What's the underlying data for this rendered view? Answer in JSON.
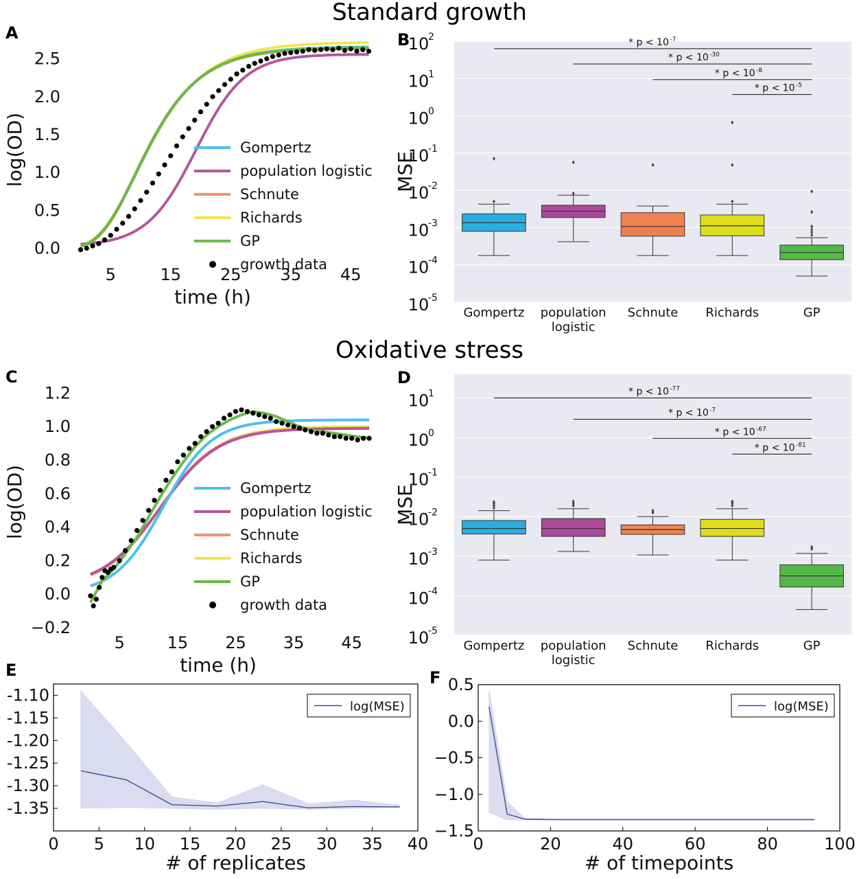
{
  "figure": {
    "titles": {
      "top": "Standard growth",
      "middle": "Oxidative stress"
    },
    "panel_letters": [
      "A",
      "B",
      "C",
      "D",
      "E",
      "F"
    ]
  },
  "colors": {
    "Gompertz": "#4cc0ec",
    "population logistic": "#b5579e",
    "Schnute": "#f0936d",
    "Richards": "#f6e352",
    "GP": "#6abb46",
    "data": "#000000",
    "box_Gompertz": "#2aaee0",
    "box_population_logistic": "#aa4a99",
    "box_Schnute": "#ee8250",
    "box_Richards": "#dede1c",
    "box_GP": "#54b848",
    "boxplot_bg": "#e9e9f1",
    "mse_line": "#3e4e9a",
    "mse_band": "#dcdcf0"
  },
  "chart_data": [
    {
      "panel": "A",
      "type": "line",
      "title": "",
      "xlabel": "time (h)",
      "ylabel": "log(OD)",
      "xlim": [
        -2,
        50
      ],
      "ylim": [
        -0.15,
        2.75
      ],
      "xticks": [
        5,
        15,
        25,
        35,
        45
      ],
      "yticks": [
        0.0,
        0.5,
        1.0,
        1.5,
        2.0,
        2.5
      ],
      "ytick_labels": [
        "0.0",
        "0.5",
        "1.0",
        "1.5",
        "2.0",
        "2.5"
      ],
      "legend": [
        "Gompertz",
        "population logistic",
        "Schnute",
        "Richards",
        "GP",
        "growth data"
      ],
      "model_params": {
        "Gompertz": {
          "kind": "gompertz",
          "A": 2.66,
          "mu": 0.162,
          "lambda": 3.1,
          "y0": 0.0
        },
        "population logistic": {
          "kind": "logistic",
          "A": 2.56,
          "k": 0.245,
          "t0": 19.2,
          "y0": 0.03
        },
        "Schnute": {
          "kind": "gompertz",
          "A": 2.64,
          "mu": 0.164,
          "lambda": 3.2,
          "y0": 0.0
        },
        "Richards": {
          "kind": "gompertz",
          "A": 2.72,
          "mu": 0.158,
          "lambda": 3.0,
          "y0": 0.0
        },
        "GP": {
          "kind": "gompertz",
          "A": 2.65,
          "mu": 0.163,
          "lambda": 3.1,
          "y0": 0.0
        }
      },
      "growth_data": {
        "x": [
          0,
          1,
          2,
          3,
          4,
          5,
          6,
          7,
          8,
          9,
          10,
          11,
          12,
          13,
          14,
          15,
          16,
          17,
          18,
          19,
          20,
          21,
          22,
          23,
          24,
          25,
          26,
          27,
          28,
          29,
          30,
          31,
          32,
          33,
          34,
          35,
          36,
          37,
          38,
          39,
          40,
          41,
          42,
          43,
          44,
          45,
          46,
          47,
          48
        ],
        "y": [
          -0.02,
          0.0,
          0.03,
          0.06,
          0.11,
          0.17,
          0.25,
          0.33,
          0.42,
          0.52,
          0.63,
          0.74,
          0.86,
          0.98,
          1.1,
          1.22,
          1.35,
          1.47,
          1.58,
          1.69,
          1.8,
          1.9,
          2.0,
          2.08,
          2.16,
          2.23,
          2.3,
          2.35,
          2.4,
          2.44,
          2.47,
          2.5,
          2.53,
          2.55,
          2.57,
          2.58,
          2.59,
          2.6,
          2.62,
          2.61,
          2.62,
          2.63,
          2.62,
          2.64,
          2.61,
          2.63,
          2.6,
          2.62,
          2.6
        ]
      }
    },
    {
      "panel": "B",
      "type": "box",
      "ylabel": "MSE",
      "scale": "log10",
      "ylim_log10": [
        -5,
        2
      ],
      "ytick_exponents": [
        "-5",
        "-4",
        "-3",
        "-2",
        "-1",
        "0",
        "1",
        "2"
      ],
      "ytick_base": "10",
      "categories": [
        "Gompertz",
        "population logistic",
        "Schnute",
        "Richards",
        "GP"
      ],
      "category_labels": [
        [
          "Gompertz"
        ],
        [
          "population",
          "logistic"
        ],
        [
          "Schnute"
        ],
        [
          "Richards"
        ],
        [
          "GP"
        ]
      ],
      "boxes_log10": [
        {
          "whislo": -3.75,
          "q1": -3.1,
          "med": -2.87,
          "q3": -2.63,
          "whishi": -2.37,
          "fliers": [
            -2.3,
            -1.15
          ]
        },
        {
          "whislo": -3.38,
          "q1": -2.73,
          "med": -2.56,
          "q3": -2.4,
          "whishi": -2.13,
          "fliers": [
            -2.08,
            -1.25
          ]
        },
        {
          "whislo": -3.75,
          "q1": -3.23,
          "med": -2.97,
          "q3": -2.6,
          "whishi": -2.42,
          "fliers": [
            -1.32
          ]
        },
        {
          "whislo": -3.75,
          "q1": -3.22,
          "med": -2.95,
          "q3": -2.66,
          "whishi": -2.37,
          "fliers": [
            -2.3,
            -1.32,
            -0.18
          ]
        },
        {
          "whislo": -4.3,
          "q1": -3.86,
          "med": -3.67,
          "q3": -3.47,
          "whishi": -3.27,
          "fliers": [
            -3.2,
            -3.12,
            -3.05,
            -2.97,
            -2.58,
            -2.03
          ]
        }
      ],
      "significance": [
        {
          "from": 0,
          "to": 4,
          "y_log10": 1.8,
          "label": "* p < 10",
          "exponent": "-7"
        },
        {
          "from": 1,
          "to": 4,
          "y_log10": 1.39,
          "label": "* p < 10",
          "exponent": "-30"
        },
        {
          "from": 2,
          "to": 4,
          "y_log10": 0.97,
          "label": "* p < 10",
          "exponent": "-8"
        },
        {
          "from": 3,
          "to": 4,
          "y_log10": 0.57,
          "label": "* p < 10",
          "exponent": "-5"
        }
      ]
    },
    {
      "panel": "C",
      "type": "line",
      "title": "",
      "xlabel": "time (h)",
      "ylabel": "log(OD)",
      "xlim": [
        -2,
        50
      ],
      "ylim": [
        -0.2,
        1.3
      ],
      "xticks": [
        5,
        15,
        25,
        35,
        45
      ],
      "yticks": [
        -0.2,
        0.0,
        0.2,
        0.4,
        0.6,
        0.8,
        1.0,
        1.2
      ],
      "ytick_labels": [
        "−0.2",
        "0.0",
        "0.2",
        "0.4",
        "0.6",
        "0.8",
        "1.0",
        "1.2"
      ],
      "legend": [
        "Gompertz",
        "population logistic",
        "Schnute",
        "Richards",
        "GP",
        "growth data"
      ],
      "model_params": {
        "Gompertz": {
          "kind": "logistic",
          "A": 1.04,
          "k": 0.24,
          "t0": 12.5,
          "y0": 0.0
        },
        "population logistic": {
          "kind": "logistic",
          "A": 0.99,
          "k": 0.2,
          "t0": 12.0,
          "y0": 0.04
        },
        "Schnute": {
          "kind": "logistic",
          "A": 0.99,
          "k": 0.205,
          "t0": 12.0,
          "y0": 0.04
        },
        "Richards": {
          "kind": "logistic",
          "A": 1.0,
          "k": 0.2,
          "t0": 12.2,
          "y0": 0.04
        }
      },
      "gp_curve": {
        "x": [
          0,
          2,
          4,
          6,
          8,
          10,
          12,
          14,
          16,
          18,
          20,
          22,
          24,
          26,
          28,
          30,
          32,
          34,
          36,
          38,
          40,
          42,
          44,
          46,
          48
        ],
        "y": [
          -0.05,
          0.08,
          0.15,
          0.24,
          0.34,
          0.46,
          0.58,
          0.69,
          0.79,
          0.88,
          0.95,
          1.0,
          1.04,
          1.07,
          1.09,
          1.08,
          1.06,
          1.03,
          1.0,
          0.98,
          0.97,
          0.96,
          0.95,
          0.94,
          0.93
        ]
      },
      "growth_data": {
        "x": [
          0,
          0.5,
          1,
          1.5,
          2,
          2.5,
          3,
          3.5,
          4,
          5,
          6,
          7,
          8,
          9,
          10,
          11,
          12,
          13,
          14,
          15,
          16,
          17,
          18,
          19,
          20,
          21,
          22,
          23,
          24,
          25,
          26,
          27,
          28,
          29,
          30,
          31,
          32,
          33,
          34,
          35,
          36,
          37,
          38,
          39,
          40,
          41,
          42,
          43,
          44,
          45,
          46,
          47,
          48
        ],
        "y": [
          -0.01,
          -0.07,
          -0.03,
          0.04,
          0.1,
          0.14,
          0.13,
          0.15,
          0.16,
          0.2,
          0.26,
          0.32,
          0.38,
          0.44,
          0.5,
          0.56,
          0.62,
          0.68,
          0.73,
          0.79,
          0.83,
          0.87,
          0.9,
          0.94,
          0.97,
          1.0,
          1.02,
          1.05,
          1.07,
          1.09,
          1.1,
          1.09,
          1.08,
          1.07,
          1.06,
          1.05,
          1.03,
          1.02,
          1.01,
          1.0,
          0.99,
          0.98,
          0.97,
          0.96,
          0.96,
          0.95,
          0.94,
          0.94,
          0.93,
          0.93,
          0.92,
          0.93,
          0.93
        ]
      }
    },
    {
      "panel": "D",
      "type": "box",
      "ylabel": "MSE",
      "scale": "log10",
      "ylim_log10": [
        -5,
        1.6
      ],
      "ytick_exponents": [
        "-5",
        "-4",
        "-3",
        "-2",
        "-1",
        "0",
        "1"
      ],
      "ytick_base": "10",
      "categories": [
        "Gompertz",
        "population logistic",
        "Schnute",
        "Richards",
        "GP"
      ],
      "category_labels": [
        [
          "Gompertz"
        ],
        [
          "population",
          "logistic"
        ],
        [
          "Schnute"
        ],
        [
          "Richards"
        ],
        [
          "GP"
        ]
      ],
      "boxes_log10": [
        {
          "whislo": -3.1,
          "q1": -2.44,
          "med": -2.3,
          "q3": -2.1,
          "whishi": -1.85,
          "fliers": [
            -1.78,
            -1.72,
            -1.67,
            -1.63
          ]
        },
        {
          "whislo": -2.88,
          "q1": -2.5,
          "med": -2.3,
          "q3": -2.05,
          "whishi": -1.8,
          "fliers": [
            -1.72,
            -1.67,
            -1.62
          ]
        },
        {
          "whislo": -2.97,
          "q1": -2.45,
          "med": -2.33,
          "q3": -2.21,
          "whishi": -2.0,
          "fliers": [
            -1.9,
            -1.85
          ]
        },
        {
          "whislo": -3.1,
          "q1": -2.5,
          "med": -2.3,
          "q3": -2.07,
          "whishi": -1.8,
          "fliers": [
            -1.72,
            -1.66,
            -1.62
          ]
        },
        {
          "whislo": -4.35,
          "q1": -3.78,
          "med": -3.5,
          "q3": -3.22,
          "whishi": -2.93,
          "fliers": [
            -2.82,
            -2.77
          ]
        }
      ],
      "significance": [
        {
          "from": 0,
          "to": 4,
          "y_log10": 1.0,
          "label": "* p < 10",
          "exponent": "-77"
        },
        {
          "from": 1,
          "to": 4,
          "y_log10": 0.46,
          "label": "* p < 10",
          "exponent": "-7"
        },
        {
          "from": 2,
          "to": 4,
          "y_log10": -0.02,
          "label": "* p < 10",
          "exponent": "-67"
        },
        {
          "from": 3,
          "to": 4,
          "y_log10": -0.42,
          "label": "* p < 10",
          "exponent": "-81"
        }
      ]
    },
    {
      "panel": "E",
      "type": "line",
      "xlabel": "# of replicates",
      "ylabel": "",
      "xlim": [
        0,
        40
      ],
      "ylim": [
        -1.4,
        -1.075
      ],
      "xticks": [
        0,
        5,
        10,
        15,
        20,
        25,
        30,
        35,
        40
      ],
      "yticks": [
        -1.35,
        -1.3,
        -1.25,
        -1.2,
        -1.15,
        -1.1
      ],
      "ytick_labels": [
        "-1.35",
        "-1.30",
        "-1.25",
        "-1.20",
        "-1.15",
        "-1.10"
      ],
      "legend": [
        "log(MSE)"
      ],
      "x": [
        3,
        8,
        13,
        18,
        23,
        28,
        33,
        38
      ],
      "y": [
        -1.267,
        -1.287,
        -1.342,
        -1.345,
        -1.335,
        -1.349,
        -1.346,
        -1.347
      ],
      "band_upper": [
        -1.09,
        -1.205,
        -1.325,
        -1.338,
        -1.298,
        -1.34,
        -1.332,
        -1.343
      ],
      "band_lower": [
        -1.35,
        -1.348,
        -1.35,
        -1.352,
        -1.35,
        -1.352,
        -1.35,
        -1.348
      ]
    },
    {
      "panel": "F",
      "type": "line",
      "xlabel": "# of timepoints",
      "ylabel": "",
      "xlim": [
        0,
        100
      ],
      "ylim": [
        -1.5,
        0.5
      ],
      "xticks": [
        0,
        20,
        40,
        60,
        80,
        100
      ],
      "yticks": [
        -1.5,
        -1.0,
        -0.5,
        0.0,
        0.5
      ],
      "ytick_labels": [
        "−1.5",
        "−1.0",
        "−0.5",
        "0.0",
        "0.5"
      ],
      "legend": [
        "log(MSE)"
      ],
      "x": [
        3,
        8,
        13,
        23,
        33,
        43,
        53,
        63,
        73,
        83,
        93
      ],
      "y": [
        0.2,
        -1.27,
        -1.34,
        -1.345,
        -1.345,
        -1.345,
        -1.345,
        -1.345,
        -1.345,
        -1.345,
        -1.345
      ],
      "band_upper": [
        0.43,
        -1.1,
        -1.33,
        -1.34,
        -1.34,
        -1.34,
        -1.34,
        -1.34,
        -1.34,
        -1.34,
        -1.34
      ],
      "band_lower": [
        -1.25,
        -1.35,
        -1.35,
        -1.35,
        -1.35,
        -1.35,
        -1.35,
        -1.35,
        -1.35,
        -1.35,
        -1.35
      ]
    }
  ]
}
